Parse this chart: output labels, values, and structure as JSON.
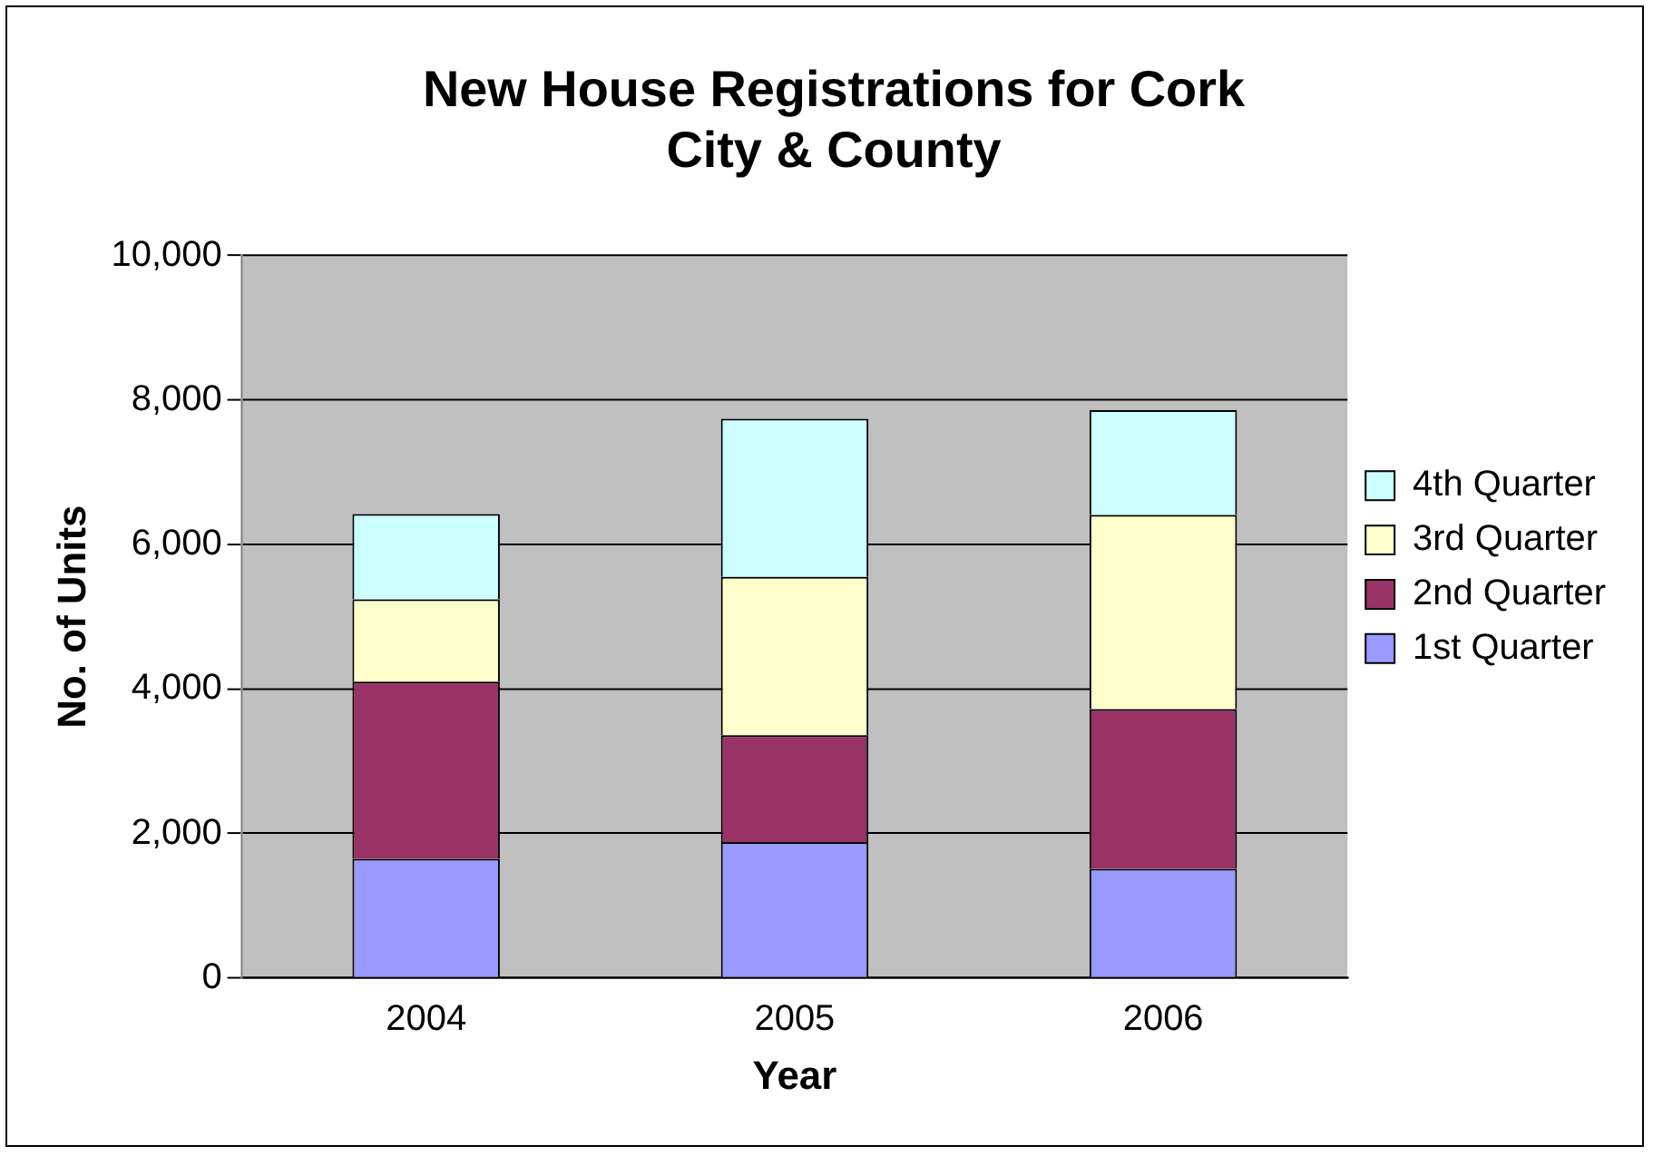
{
  "chart_data": {
    "type": "bar",
    "title": "New House Registrations for Cork City & County",
    "xlabel": "Year",
    "ylabel": "No. of Units",
    "categories": [
      "2004",
      "2005",
      "2006"
    ],
    "stacked": true,
    "series": [
      {
        "name": "1st Quarter",
        "color": "#9999ff",
        "values": [
          1650,
          1880,
          1510
        ]
      },
      {
        "name": "2nd Quarter",
        "color": "#993366",
        "values": [
          2450,
          1480,
          2210
        ]
      },
      {
        "name": "3rd Quarter",
        "color": "#ffffcc",
        "values": [
          1140,
          2190,
          2690
        ]
      },
      {
        "name": "4th Quarter",
        "color": "#ccffff",
        "values": [
          1180,
          2190,
          1450
        ]
      }
    ],
    "ylim": [
      0,
      10000
    ],
    "yticks": [
      0,
      {
        "value": 2000,
        "label": "2,000"
      },
      {
        "value": 4000,
        "label": "4,000"
      },
      {
        "value": 6000,
        "label": "6,000"
      },
      {
        "value": 8000,
        "label": "8,000"
      },
      {
        "value": 10000,
        "label": "10,000"
      }
    ],
    "grid": "y",
    "legend": "right"
  }
}
